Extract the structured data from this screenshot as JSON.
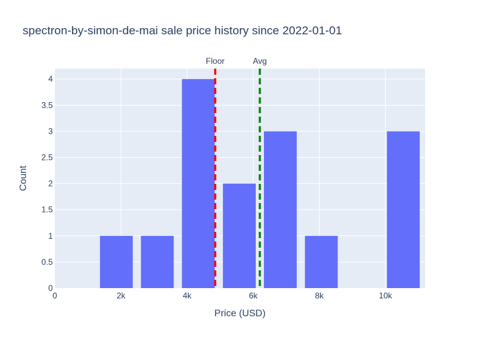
{
  "chart_data": {
    "type": "bar",
    "title": "spectron-by-simon-de-mai sale price history since 2022-01-01",
    "xlabel": "Price (USD)",
    "ylabel": "Count",
    "xlim": [
      0,
      11200
    ],
    "ylim": [
      0,
      4.2
    ],
    "x_tick_values": [
      0,
      2000,
      4000,
      6000,
      8000,
      10000
    ],
    "x_tick_labels": [
      "0",
      "2k",
      "4k",
      "6k",
      "8k",
      "10k"
    ],
    "y_tick_values": [
      0,
      0.5,
      1,
      1.5,
      2,
      2.5,
      3,
      3.5,
      4
    ],
    "y_tick_labels": [
      "0",
      "0.5",
      "1",
      "1.5",
      "2",
      "2.5",
      "3",
      "3.5",
      "4"
    ],
    "bin_width": 1240,
    "bars": [
      {
        "x": 1860,
        "value": 1
      },
      {
        "x": 3100,
        "value": 1
      },
      {
        "x": 4340,
        "value": 4
      },
      {
        "x": 5580,
        "value": 2
      },
      {
        "x": 6820,
        "value": 3
      },
      {
        "x": 8060,
        "value": 1
      },
      {
        "x": 10540,
        "value": 3
      }
    ],
    "vlines": [
      {
        "label": "Floor",
        "x": 4850,
        "color": "#ff0000"
      },
      {
        "label": "Avg",
        "x": 6200,
        "color": "#008000"
      }
    ],
    "bar_color": "#636efa",
    "plot_bgcolor": "#e5ecf6",
    "grid": true,
    "legend": "none"
  }
}
